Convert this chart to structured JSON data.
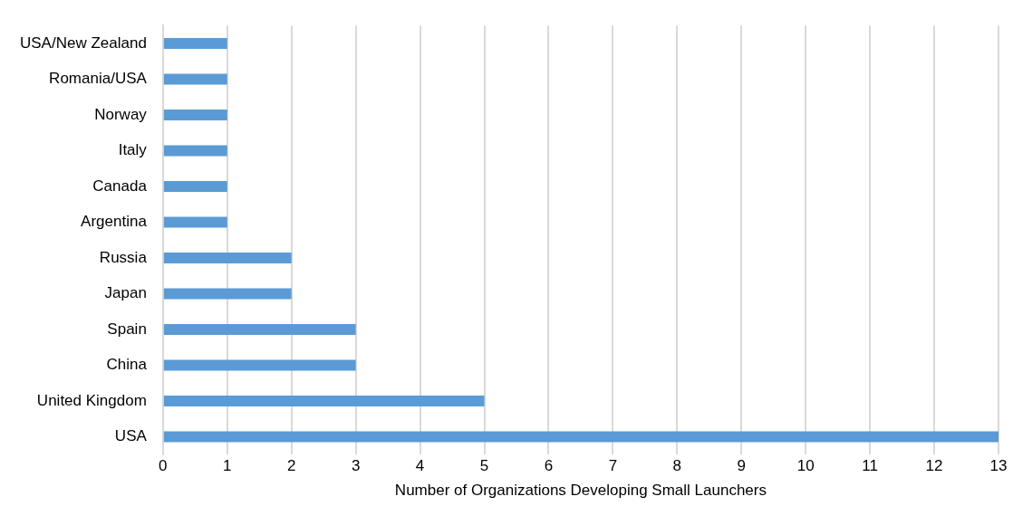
{
  "chart_data": {
    "type": "bar",
    "orientation": "horizontal",
    "xlabel": "Number of Organizations Developing Small Launchers",
    "categories": [
      "USA/New Zealand",
      "Romania/USA",
      "Norway",
      "Italy",
      "Canada",
      "Argentina",
      "Russia",
      "Japan",
      "Spain",
      "China",
      "United Kingdom",
      "USA"
    ],
    "values": [
      1,
      1,
      1,
      1,
      1,
      1,
      2,
      2,
      3,
      3,
      5,
      13
    ],
    "color": "#5b9bd5",
    "xlim": [
      0,
      13
    ],
    "xticks": [
      0,
      1,
      2,
      3,
      4,
      5,
      6,
      7,
      8,
      9,
      10,
      11,
      12,
      13
    ],
    "grid": "x",
    "legend": false
  }
}
